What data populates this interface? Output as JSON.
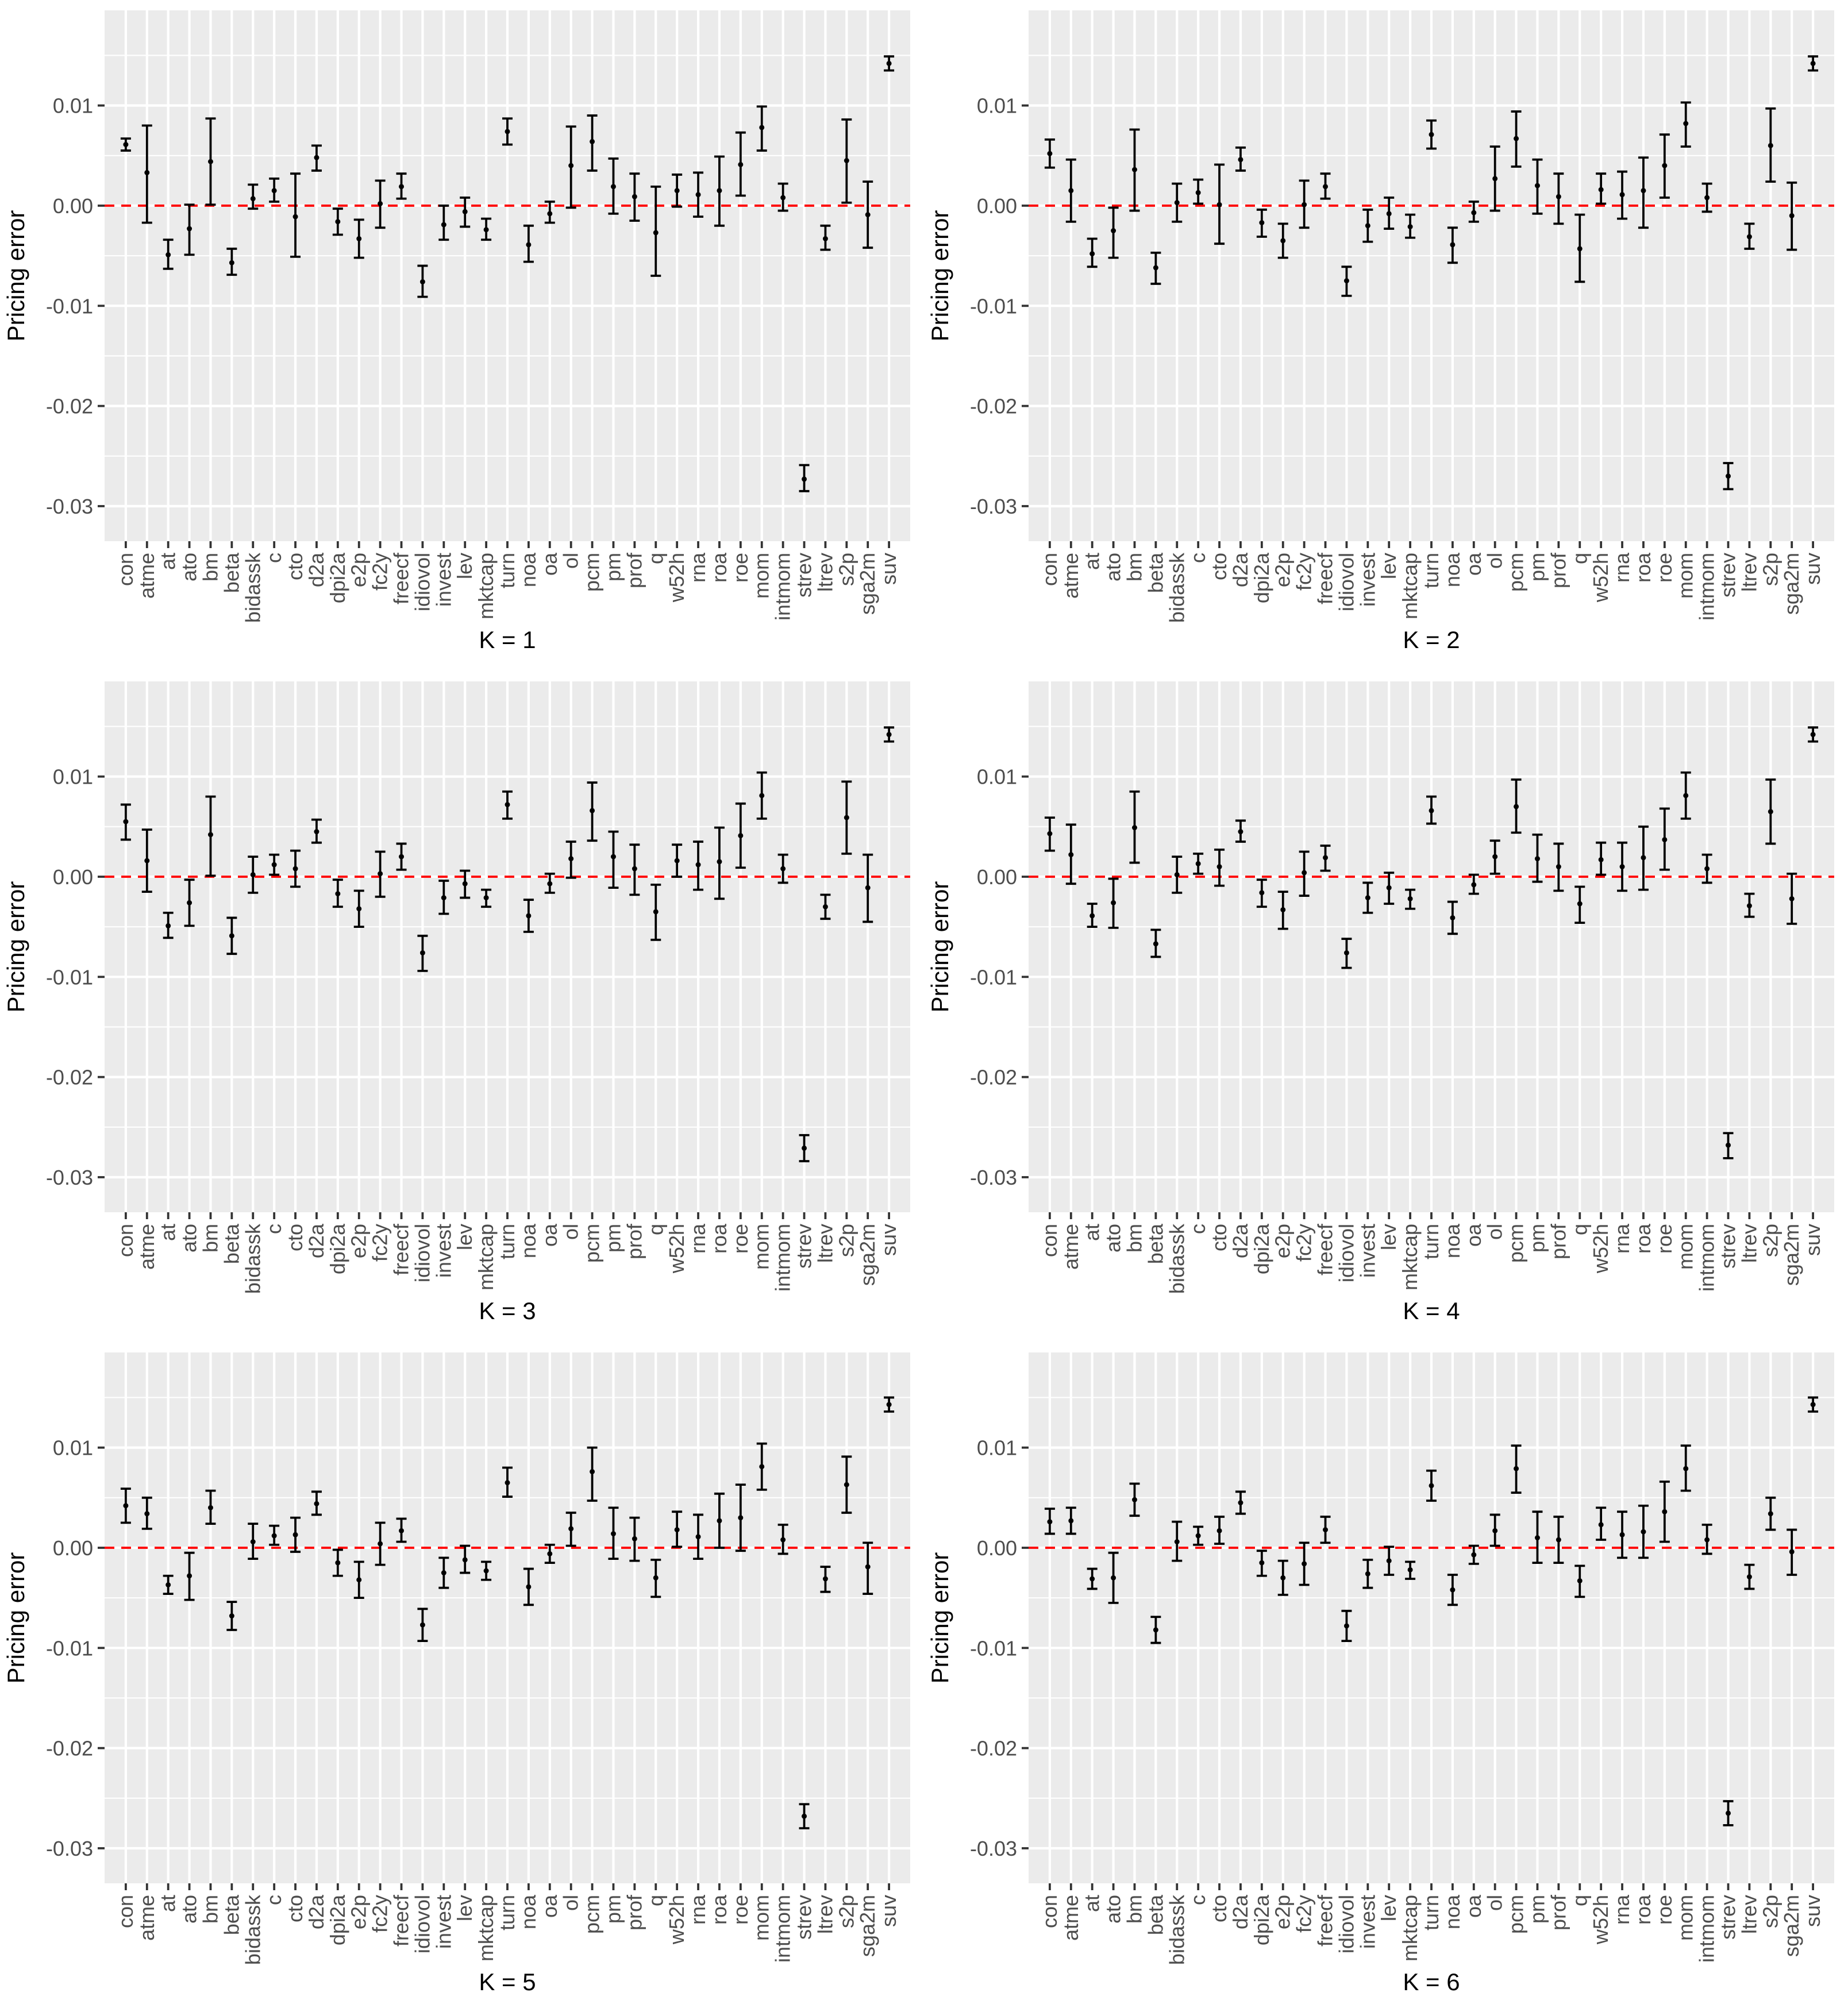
{
  "chart_data": [
    {
      "type": "errorbar",
      "panel": "K = 1",
      "xlabel": "K = 1",
      "ylabel": "Pricing error",
      "ylim": [
        -0.0335,
        0.0195
      ],
      "yticks": [
        0.01,
        0.0,
        -0.01,
        -0.02,
        -0.03
      ],
      "ytick_labels": [
        "0.01",
        "0.00",
        "-0.01",
        "-0.02",
        "-0.03"
      ],
      "reference_line": {
        "y": 0,
        "color": "#ff0000",
        "style": "dashed"
      },
      "categories": [
        "con",
        "atme",
        "at",
        "ato",
        "bm",
        "beta",
        "bidassk",
        "c",
        "cto",
        "d2a",
        "dpi2a",
        "e2p",
        "fc2y",
        "freecf",
        "idiovol",
        "invest",
        "lev",
        "mktcap",
        "turn",
        "noa",
        "oa",
        "ol",
        "pcm",
        "pm",
        "prof",
        "q",
        "w52h",
        "rna",
        "roa",
        "roe",
        "mom",
        "intmom",
        "strev",
        "ltrev",
        "s2p",
        "sga2m",
        "suv"
      ],
      "estimate": [
        0.0061,
        0.0033,
        -0.0049,
        -0.0023,
        0.0044,
        -0.0057,
        0.0007,
        0.0015,
        -0.0011,
        0.0048,
        -0.0016,
        -0.0033,
        0.0002,
        0.0019,
        -0.0076,
        -0.0019,
        -0.0006,
        -0.0024,
        0.0074,
        -0.0039,
        -0.0008,
        0.004,
        0.0064,
        0.0019,
        0.0009,
        -0.0027,
        0.0015,
        0.0011,
        0.0015,
        0.0041,
        0.0078,
        0.0008,
        -0.0273,
        -0.0033,
        0.0045,
        -0.0009,
        0.0142
      ],
      "lower": [
        0.0055,
        -0.0017,
        -0.0063,
        -0.0049,
        0.0001,
        -0.0069,
        -0.0003,
        0.0004,
        -0.0051,
        0.0035,
        -0.0029,
        -0.0052,
        -0.0022,
        0.0007,
        -0.0091,
        -0.0034,
        -0.0021,
        -0.0034,
        0.0061,
        -0.0056,
        -0.0017,
        -0.0002,
        0.0035,
        -0.0008,
        -0.0015,
        -0.007,
        -0.0001,
        -0.0011,
        -0.002,
        0.001,
        0.0055,
        -0.0005,
        -0.0285,
        -0.0044,
        0.0003,
        -0.0042,
        0.0135
      ],
      "upper": [
        0.0067,
        0.008,
        -0.0034,
        0.0001,
        0.0087,
        -0.0043,
        0.0021,
        0.0027,
        0.0032,
        0.006,
        -0.0003,
        -0.0014,
        0.0025,
        0.0032,
        -0.006,
        0.0,
        0.0008,
        -0.0013,
        0.0087,
        -0.002,
        0.0004,
        0.0079,
        0.009,
        0.0047,
        0.0032,
        0.0019,
        0.0031,
        0.0033,
        0.0049,
        0.0073,
        0.0099,
        0.0022,
        -0.0259,
        -0.002,
        0.0086,
        0.0024,
        0.0149
      ]
    },
    {
      "type": "errorbar",
      "panel": "K = 2",
      "xlabel": "K = 2",
      "ylabel": "Pricing error",
      "ylim": [
        -0.0335,
        0.0195
      ],
      "yticks": [
        0.01,
        0.0,
        -0.01,
        -0.02,
        -0.03
      ],
      "ytick_labels": [
        "0.01",
        "0.00",
        "-0.01",
        "-0.02",
        "-0.03"
      ],
      "reference_line": {
        "y": 0,
        "color": "#ff0000",
        "style": "dashed"
      },
      "categories": [
        "con",
        "atme",
        "at",
        "ato",
        "bm",
        "beta",
        "bidassk",
        "c",
        "cto",
        "d2a",
        "dpi2a",
        "e2p",
        "fc2y",
        "freecf",
        "idiovol",
        "invest",
        "lev",
        "mktcap",
        "turn",
        "noa",
        "oa",
        "ol",
        "pcm",
        "pm",
        "prof",
        "q",
        "w52h",
        "rna",
        "roa",
        "roe",
        "mom",
        "intmom",
        "strev",
        "ltrev",
        "s2p",
        "sga2m",
        "suv"
      ],
      "estimate": [
        0.0052,
        0.0015,
        -0.0048,
        -0.0025,
        0.0036,
        -0.0062,
        0.0003,
        0.0013,
        0.0001,
        0.0046,
        -0.0017,
        -0.0035,
        0.0001,
        0.0019,
        -0.0075,
        -0.002,
        -0.0008,
        -0.0021,
        0.0071,
        -0.0039,
        -0.0007,
        0.0027,
        0.0067,
        0.002,
        0.0009,
        -0.0043,
        0.0016,
        0.0011,
        0.0015,
        0.004,
        0.0082,
        0.0008,
        -0.027,
        -0.0031,
        0.006,
        -0.001,
        0.0142
      ],
      "lower": [
        0.0038,
        -0.0016,
        -0.0061,
        -0.0052,
        -0.0005,
        -0.0078,
        -0.0016,
        0.0002,
        -0.0038,
        0.0035,
        -0.0031,
        -0.0052,
        -0.0022,
        0.0007,
        -0.009,
        -0.0036,
        -0.0023,
        -0.0032,
        0.0057,
        -0.0057,
        -0.0016,
        -0.0005,
        0.0039,
        -0.0008,
        -0.0018,
        -0.0076,
        0.0002,
        -0.0013,
        -0.0022,
        0.0008,
        0.0059,
        -0.0006,
        -0.0283,
        -0.0043,
        0.0024,
        -0.0044,
        0.0135
      ],
      "upper": [
        0.0066,
        0.0046,
        -0.0033,
        -0.0002,
        0.0076,
        -0.0047,
        0.0022,
        0.0026,
        0.0041,
        0.0058,
        -0.0004,
        -0.0018,
        0.0025,
        0.0032,
        -0.0061,
        -0.0004,
        0.0008,
        -0.0009,
        0.0085,
        -0.0022,
        0.0004,
        0.0059,
        0.0094,
        0.0046,
        0.0032,
        -0.0009,
        0.0032,
        0.0034,
        0.0048,
        0.0071,
        0.0103,
        0.0022,
        -0.0257,
        -0.0018,
        0.0097,
        0.0023,
        0.0149
      ]
    },
    {
      "type": "errorbar",
      "panel": "K = 3",
      "xlabel": "K = 3",
      "ylabel": "Pricing error",
      "ylim": [
        -0.0335,
        0.0195
      ],
      "yticks": [
        0.01,
        0.0,
        -0.01,
        -0.02,
        -0.03
      ],
      "ytick_labels": [
        "0.01",
        "0.00",
        "-0.01",
        "-0.02",
        "-0.03"
      ],
      "reference_line": {
        "y": 0,
        "color": "#ff0000",
        "style": "dashed"
      },
      "categories": [
        "con",
        "atme",
        "at",
        "ato",
        "bm",
        "beta",
        "bidassk",
        "c",
        "cto",
        "d2a",
        "dpi2a",
        "e2p",
        "fc2y",
        "freecf",
        "idiovol",
        "invest",
        "lev",
        "mktcap",
        "turn",
        "noa",
        "oa",
        "ol",
        "pcm",
        "pm",
        "prof",
        "q",
        "w52h",
        "rna",
        "roa",
        "roe",
        "mom",
        "intmom",
        "strev",
        "ltrev",
        "s2p",
        "sga2m",
        "suv"
      ],
      "estimate": [
        0.0055,
        0.0016,
        -0.0049,
        -0.0026,
        0.0042,
        -0.0059,
        0.0002,
        0.0012,
        0.0008,
        0.0045,
        -0.0017,
        -0.0032,
        0.0003,
        0.002,
        -0.0076,
        -0.0021,
        -0.0007,
        -0.0021,
        0.0072,
        -0.0039,
        -0.0007,
        0.0018,
        0.0066,
        0.002,
        0.0008,
        -0.0035,
        0.0016,
        0.0012,
        0.0015,
        0.0041,
        0.0081,
        0.0008,
        -0.0271,
        -0.003,
        0.0059,
        -0.0011,
        0.0142
      ],
      "lower": [
        0.0037,
        -0.0015,
        -0.0061,
        -0.0049,
        0.0001,
        -0.0077,
        -0.0016,
        0.0002,
        -0.001,
        0.0034,
        -0.003,
        -0.005,
        -0.002,
        0.0007,
        -0.0094,
        -0.0037,
        -0.0021,
        -0.003,
        0.0058,
        -0.0055,
        -0.0016,
        -0.0001,
        0.0036,
        -0.0011,
        -0.0018,
        -0.0063,
        0.0,
        -0.0013,
        -0.0022,
        0.0009,
        0.0058,
        -0.0006,
        -0.0284,
        -0.0042,
        0.0023,
        -0.0045,
        0.0135
      ],
      "upper": [
        0.0072,
        0.0047,
        -0.0036,
        -0.0003,
        0.008,
        -0.0041,
        0.002,
        0.0022,
        0.0026,
        0.0057,
        -0.0003,
        -0.0014,
        0.0025,
        0.0033,
        -0.0059,
        -0.0004,
        0.0006,
        -0.0013,
        0.0085,
        -0.0023,
        0.0003,
        0.0035,
        0.0094,
        0.0045,
        0.0032,
        -0.0008,
        0.0032,
        0.0035,
        0.0049,
        0.0073,
        0.0104,
        0.0022,
        -0.0258,
        -0.0018,
        0.0095,
        0.0022,
        0.0149
      ]
    },
    {
      "type": "errorbar",
      "panel": "K = 4",
      "xlabel": "K = 4",
      "ylabel": "Pricing error",
      "ylim": [
        -0.0335,
        0.0195
      ],
      "yticks": [
        0.01,
        0.0,
        -0.01,
        -0.02,
        -0.03
      ],
      "ytick_labels": [
        "0.01",
        "0.00",
        "-0.01",
        "-0.02",
        "-0.03"
      ],
      "reference_line": {
        "y": 0,
        "color": "#ff0000",
        "style": "dashed"
      },
      "categories": [
        "con",
        "atme",
        "at",
        "ato",
        "bm",
        "beta",
        "bidassk",
        "c",
        "cto",
        "d2a",
        "dpi2a",
        "e2p",
        "fc2y",
        "freecf",
        "idiovol",
        "invest",
        "lev",
        "mktcap",
        "turn",
        "noa",
        "oa",
        "ol",
        "pcm",
        "pm",
        "prof",
        "q",
        "w52h",
        "rna",
        "roa",
        "roe",
        "mom",
        "intmom",
        "strev",
        "ltrev",
        "s2p",
        "sga2m",
        "suv"
      ],
      "estimate": [
        0.0043,
        0.0022,
        -0.0039,
        -0.0026,
        0.0049,
        -0.0067,
        0.0002,
        0.0013,
        0.001,
        0.0045,
        -0.0016,
        -0.0033,
        0.0004,
        0.0019,
        -0.0076,
        -0.0021,
        -0.0011,
        -0.0022,
        0.0066,
        -0.0041,
        -0.0008,
        0.002,
        0.007,
        0.0018,
        0.001,
        -0.0027,
        0.0017,
        0.001,
        0.0019,
        0.0037,
        0.0081,
        0.0008,
        -0.0268,
        -0.0029,
        0.0065,
        -0.0022,
        0.0142
      ],
      "lower": [
        0.0026,
        -0.0007,
        -0.005,
        -0.0051,
        0.0014,
        -0.008,
        -0.0016,
        0.0003,
        -0.0009,
        0.0035,
        -0.003,
        -0.0052,
        -0.0019,
        0.0006,
        -0.0091,
        -0.0036,
        -0.0027,
        -0.0032,
        0.0053,
        -0.0057,
        -0.0017,
        0.0003,
        0.0044,
        -0.0005,
        -0.0014,
        -0.0046,
        0.0002,
        -0.0014,
        -0.0013,
        0.0007,
        0.0058,
        -0.0006,
        -0.0281,
        -0.004,
        0.0033,
        -0.0047,
        0.0135
      ],
      "upper": [
        0.0059,
        0.0052,
        -0.0027,
        -0.0002,
        0.0085,
        -0.0053,
        0.002,
        0.0023,
        0.0027,
        0.0056,
        -0.0003,
        -0.0015,
        0.0025,
        0.0031,
        -0.0062,
        -0.0006,
        0.0004,
        -0.0013,
        0.008,
        -0.0025,
        0.0002,
        0.0036,
        0.0097,
        0.0042,
        0.0033,
        -0.001,
        0.0034,
        0.0034,
        0.005,
        0.0068,
        0.0104,
        0.0022,
        -0.0256,
        -0.0017,
        0.0097,
        0.0003,
        0.0149
      ]
    },
    {
      "type": "errorbar",
      "panel": "K = 5",
      "xlabel": "K = 5",
      "ylabel": "Pricing error",
      "ylim": [
        -0.0335,
        0.0195
      ],
      "yticks": [
        0.01,
        0.0,
        -0.01,
        -0.02,
        -0.03
      ],
      "ytick_labels": [
        "0.01",
        "0.00",
        "-0.01",
        "-0.02",
        "-0.03"
      ],
      "reference_line": {
        "y": 0,
        "color": "#ff0000",
        "style": "dashed"
      },
      "categories": [
        "con",
        "atme",
        "at",
        "ato",
        "bm",
        "beta",
        "bidassk",
        "c",
        "cto",
        "d2a",
        "dpi2a",
        "e2p",
        "fc2y",
        "freecf",
        "idiovol",
        "invest",
        "lev",
        "mktcap",
        "turn",
        "noa",
        "oa",
        "ol",
        "pcm",
        "pm",
        "prof",
        "q",
        "w52h",
        "rna",
        "roa",
        "roe",
        "mom",
        "intmom",
        "strev",
        "ltrev",
        "s2p",
        "sga2m",
        "suv"
      ],
      "estimate": [
        0.0042,
        0.0034,
        -0.0037,
        -0.0028,
        0.004,
        -0.0068,
        0.0006,
        0.0012,
        0.0013,
        0.0044,
        -0.0015,
        -0.0032,
        0.0004,
        0.0017,
        -0.0077,
        -0.0025,
        -0.0012,
        -0.0023,
        0.0065,
        -0.0039,
        -0.0006,
        0.0019,
        0.0076,
        0.0014,
        0.0009,
        -0.003,
        0.0018,
        0.0011,
        0.0027,
        0.003,
        0.0081,
        0.0008,
        -0.0268,
        -0.0031,
        0.0063,
        -0.0019,
        0.0143
      ],
      "lower": [
        0.0025,
        0.0019,
        -0.0046,
        -0.0052,
        0.0024,
        -0.0082,
        -0.0011,
        0.0003,
        -0.0004,
        0.0033,
        -0.0028,
        -0.005,
        -0.0017,
        0.0006,
        -0.0093,
        -0.004,
        -0.0025,
        -0.0032,
        0.0051,
        -0.0057,
        -0.0015,
        0.0002,
        0.0047,
        -0.0011,
        -0.0013,
        -0.0049,
        0.0001,
        -0.0011,
        0.0,
        -0.0003,
        0.0058,
        -0.0006,
        -0.028,
        -0.0044,
        0.0035,
        -0.0046,
        0.0136
      ],
      "upper": [
        0.0059,
        0.005,
        -0.0028,
        -0.0005,
        0.0057,
        -0.0054,
        0.0024,
        0.0022,
        0.003,
        0.0056,
        -0.0002,
        -0.0014,
        0.0025,
        0.0029,
        -0.0061,
        -0.001,
        0.0002,
        -0.0014,
        0.008,
        -0.0021,
        0.0003,
        0.0035,
        0.01,
        0.004,
        0.003,
        -0.0012,
        0.0036,
        0.0033,
        0.0054,
        0.0063,
        0.0104,
        0.0023,
        -0.0256,
        -0.0019,
        0.0091,
        0.0005,
        0.015
      ]
    },
    {
      "type": "errorbar",
      "panel": "K = 6",
      "xlabel": "K = 6",
      "ylabel": "Pricing error",
      "ylim": [
        -0.0335,
        0.0195
      ],
      "yticks": [
        0.01,
        0.0,
        -0.01,
        -0.02,
        -0.03
      ],
      "ytick_labels": [
        "0.01",
        "0.00",
        "-0.01",
        "-0.02",
        "-0.03"
      ],
      "reference_line": {
        "y": 0,
        "color": "#ff0000",
        "style": "dashed"
      },
      "categories": [
        "con",
        "atme",
        "at",
        "ato",
        "bm",
        "beta",
        "bidassk",
        "c",
        "cto",
        "d2a",
        "dpi2a",
        "e2p",
        "fc2y",
        "freecf",
        "idiovol",
        "invest",
        "lev",
        "mktcap",
        "turn",
        "noa",
        "oa",
        "ol",
        "pcm",
        "pm",
        "prof",
        "q",
        "w52h",
        "rna",
        "roa",
        "roe",
        "mom",
        "intmom",
        "strev",
        "ltrev",
        "s2p",
        "sga2m",
        "suv"
      ],
      "estimate": [
        0.0026,
        0.0027,
        -0.0031,
        -0.003,
        0.0048,
        -0.0082,
        0.0006,
        0.0012,
        0.0017,
        0.0045,
        -0.0015,
        -0.003,
        -0.0016,
        0.0018,
        -0.0078,
        -0.0026,
        -0.0013,
        -0.0022,
        0.0062,
        -0.0042,
        -0.0007,
        0.0017,
        0.0079,
        0.001,
        0.0008,
        -0.0033,
        0.0023,
        0.0013,
        0.0016,
        0.0036,
        0.0079,
        0.0008,
        -0.0265,
        -0.0029,
        0.0034,
        -0.0004,
        0.0143
      ],
      "lower": [
        0.0014,
        0.0014,
        -0.0041,
        -0.0055,
        0.0032,
        -0.0095,
        -0.0013,
        0.0003,
        0.0004,
        0.0034,
        -0.0028,
        -0.0047,
        -0.0037,
        0.0005,
        -0.0093,
        -0.004,
        -0.0027,
        -0.0031,
        0.0047,
        -0.0057,
        -0.0016,
        0.0002,
        0.0055,
        -0.0015,
        -0.0015,
        -0.0049,
        0.0008,
        -0.001,
        -0.001,
        0.0006,
        0.0057,
        -0.0006,
        -0.0277,
        -0.0041,
        0.0018,
        -0.0027,
        0.0136
      ],
      "upper": [
        0.0039,
        0.004,
        -0.0021,
        -0.0005,
        0.0064,
        -0.0069,
        0.0026,
        0.0021,
        0.0031,
        0.0056,
        -0.0003,
        -0.0013,
        0.0005,
        0.0031,
        -0.0063,
        -0.0012,
        0.0001,
        -0.0014,
        0.0077,
        -0.0027,
        0.0002,
        0.0033,
        0.0102,
        0.0036,
        0.0031,
        -0.0018,
        0.004,
        0.0036,
        0.0042,
        0.0066,
        0.0102,
        0.0023,
        -0.0253,
        -0.0017,
        0.005,
        0.0018,
        0.015
      ]
    }
  ]
}
